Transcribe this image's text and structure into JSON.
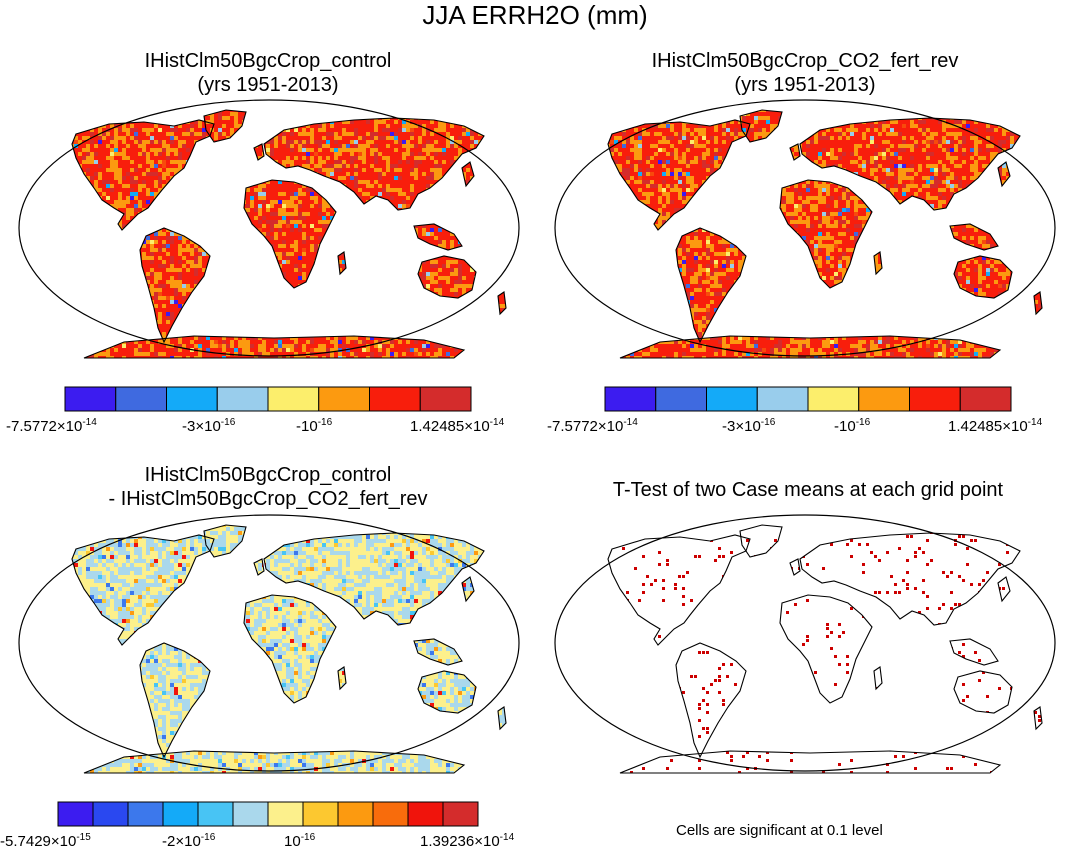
{
  "figure_title": "JJA ERRH2O (mm)",
  "panels": [
    {
      "id": "p1",
      "title_line1": "IHistClm50BgcCrop_control",
      "title_line2": "(yrs 1951-2013)",
      "palette": "diverging8",
      "density": 0.92,
      "mode": "hot"
    },
    {
      "id": "p2",
      "title_line1": "IHistClm50BgcCrop_CO2_fert_rev",
      "title_line2": "(yrs 1951-2013)",
      "palette": "diverging8",
      "density": 0.92,
      "mode": "hot"
    },
    {
      "id": "p3",
      "title_line1": "IHistClm50BgcCrop_control",
      "title_line2": "- IHistClm50BgcCrop_CO2_fert_rev",
      "palette": "diverging12",
      "density": 0.95,
      "mode": "pale"
    },
    {
      "id": "p4",
      "title_line1": "T-Test of two Case means at each grid point",
      "title_line2": "",
      "palette": "sig",
      "density": 0.08,
      "mode": "sig"
    }
  ],
  "colorbars": [
    {
      "colors": [
        "#3c1cf0",
        "#3f6ae0",
        "#14aaf8",
        "#99cdec",
        "#fcee6c",
        "#fc9a10",
        "#f81e0c",
        "#d42c2c"
      ],
      "labels": [
        {
          "base": "-7.5772×10",
          "exp": "-14"
        },
        {
          "base": "-3×10",
          "exp": "-16"
        },
        {
          "base": "-10",
          "exp": "-16"
        },
        {
          "base": "1.42485×10",
          "exp": "-14"
        }
      ]
    },
    {
      "colors": [
        "#3c1cf0",
        "#3f6ae0",
        "#14aaf8",
        "#99cdec",
        "#fcee6c",
        "#fc9a10",
        "#f81e0c",
        "#d42c2c"
      ],
      "labels": [
        {
          "base": "-7.5772×10",
          "exp": "-14"
        },
        {
          "base": "-3×10",
          "exp": "-16"
        },
        {
          "base": "-10",
          "exp": "-16"
        },
        {
          "base": "1.42485×10",
          "exp": "-14"
        }
      ]
    },
    {
      "colors": [
        "#3c1cf0",
        "#2a48f0",
        "#3c78ec",
        "#14aaf8",
        "#48c4f4",
        "#aad8ec",
        "#fcf08c",
        "#fcc830",
        "#fc9a10",
        "#f86c0c",
        "#f0140c",
        "#d42c2c"
      ],
      "labels": [
        {
          "base": "-5.7429×10",
          "exp": "-15"
        },
        {
          "base": "-2×10",
          "exp": "-16"
        },
        {
          "base": "10",
          "exp": "-16"
        },
        {
          "base": "1.39236×10",
          "exp": "-14"
        }
      ]
    }
  ],
  "significance_note": "Cells are significant at 0.1 level",
  "colors": {
    "sig_cell": "#cc0000",
    "coast": "#000000"
  }
}
